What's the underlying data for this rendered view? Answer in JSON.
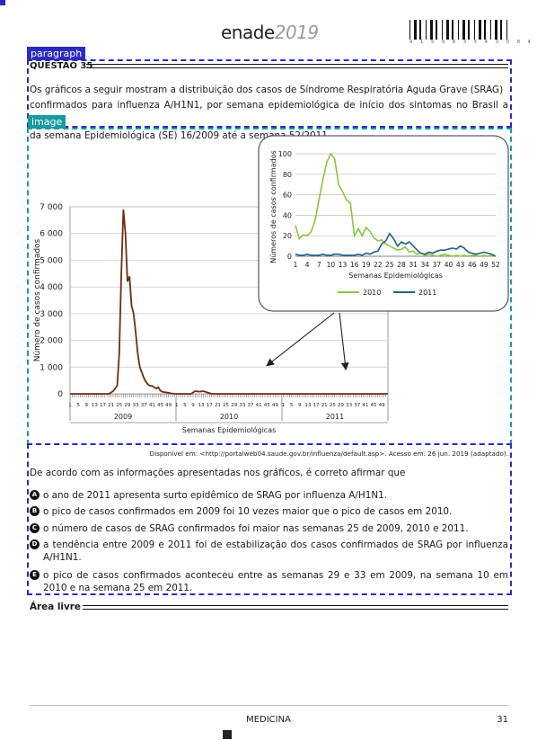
{
  "header": {
    "logo_main": "enade",
    "logo_year": "2019",
    "barcode_digits": "4 1 5 9 8 3 5 4 3 0 8 4"
  },
  "annotations": {
    "paragraph_tag": "paragraph",
    "image_tag": "image"
  },
  "question": {
    "title": "QUESTÃO 35",
    "intro_lines": [
      "Os gráficos a seguir mostram a distribuição dos casos de Síndrome Respiratória Aguda Grave (SRAG)",
      "confirmados para influenza A/H1N1, por semana epidemiológica de início dos sintomas no Brasil a partir",
      "da semana Epidemiológica (SE) 16/2009 até a semana 52/2011."
    ],
    "source": "Disponível em: <http://portalweb04.saude.gov.br/influenza/default.asp>. Acesso em: 26 jun. 2019 (adaptado).",
    "prompt": "De acordo com as informações apresentadas nos gráficos, é correto afirmar que",
    "options": [
      {
        "letter": "A",
        "text": "o ano de 2011 apresenta surto epidêmico de SRAG por influenza A/H1N1."
      },
      {
        "letter": "B",
        "text": "o pico de casos confirmados em 2009 foi 10 vezes maior que o pico de casos em 2010."
      },
      {
        "letter": "C",
        "text": "o número de casos de SRAG confirmados foi maior nas semanas 25 de 2009, 2010 e 2011."
      },
      {
        "letter": "D",
        "text": "a tendência entre 2009 e 2011 foi de estabilização dos casos confirmados de SRAG por influenza A/H1N1."
      },
      {
        "letter": "E",
        "text": "o pico de casos confirmados aconteceu entre as semanas 29 e 33 em 2009, na semana 10 em 2010 e na semana 25 em 2011."
      }
    ]
  },
  "area_livre": "Área livre",
  "footer": {
    "center": "MEDICINA",
    "page": "31"
  },
  "chart_data": [
    {
      "type": "line",
      "title": "",
      "xlabel": "Semanas Epidemiológicas",
      "ylabel": "Número de casos confirmados",
      "ylim": [
        0,
        7000
      ],
      "yticks": [
        "0",
        "1 000",
        "2 000",
        "3 000",
        "4 000",
        "5 000",
        "6 000",
        "7 000"
      ],
      "x_tick_labels": [
        "1",
        "5",
        "9",
        "13",
        "17",
        "21",
        "25",
        "29",
        "33",
        "37",
        "41",
        "45",
        "49",
        "1",
        "5",
        "9",
        "13",
        "17",
        "21",
        "25",
        "29",
        "33",
        "37",
        "41",
        "45",
        "49",
        "1",
        "5",
        "9",
        "13",
        "17",
        "21",
        "25",
        "29",
        "33",
        "37",
        "41",
        "45",
        "49"
      ],
      "year_labels": [
        "2009",
        "2010",
        "2011"
      ],
      "series": [
        {
          "color": "#6b2e12",
          "x": [
            1,
            20,
            22,
            24,
            25,
            26,
            27,
            28,
            29,
            30,
            31,
            32,
            33,
            34,
            35,
            36,
            37,
            38,
            39,
            40,
            41,
            42,
            43,
            44,
            45,
            46,
            47,
            48,
            49,
            50,
            52,
            55,
            60,
            62,
            64,
            66,
            70,
            80,
            100,
            120,
            140,
            156
          ],
          "values": [
            0,
            0,
            100,
            300,
            1500,
            4500,
            6900,
            6000,
            4200,
            4400,
            3300,
            3000,
            2300,
            1500,
            1000,
            800,
            600,
            450,
            350,
            300,
            300,
            250,
            200,
            250,
            120,
            80,
            60,
            50,
            40,
            20,
            0,
            0,
            0,
            100,
            80,
            100,
            0,
            0,
            0,
            0,
            0,
            0
          ]
        }
      ]
    },
    {
      "type": "line",
      "title": "",
      "xlabel": "Semanas Epidemiológicas",
      "ylabel": "Números de casos confirmados",
      "ylim": [
        0,
        100
      ],
      "yticks": [
        "0",
        "20",
        "40",
        "60",
        "80",
        "100"
      ],
      "x_tick_labels": [
        "1",
        "4",
        "7",
        "10",
        "13",
        "16",
        "19",
        "22",
        "25",
        "28",
        "31",
        "34",
        "37",
        "40",
        "43",
        "46",
        "49",
        "52"
      ],
      "legend": "bottom",
      "series": [
        {
          "name": "2010",
          "color": "#8cc63f",
          "x": [
            1,
            2,
            3,
            4,
            5,
            6,
            7,
            8,
            9,
            10,
            11,
            12,
            13,
            14,
            15,
            16,
            17,
            18,
            19,
            20,
            21,
            22,
            23,
            24,
            25,
            26,
            27,
            28,
            29,
            30,
            31,
            32,
            33,
            34,
            35,
            36,
            37,
            38,
            39,
            40,
            41,
            42,
            43,
            44,
            45,
            46,
            47,
            48,
            49,
            50,
            51,
            52
          ],
          "values": [
            30,
            17,
            21,
            20,
            24,
            35,
            55,
            75,
            92,
            100,
            95,
            70,
            63,
            55,
            52,
            20,
            27,
            20,
            28,
            24,
            18,
            15,
            16,
            12,
            10,
            8,
            6,
            7,
            9,
            4,
            5,
            2,
            3,
            1,
            2,
            1,
            0,
            1,
            2,
            1,
            0,
            1,
            0,
            1,
            0,
            1,
            1,
            0,
            1,
            0,
            1,
            0
          ]
        },
        {
          "name": "2011",
          "color": "#1f5f8b",
          "x": [
            1,
            2,
            3,
            4,
            5,
            6,
            7,
            8,
            9,
            10,
            11,
            12,
            13,
            14,
            15,
            16,
            17,
            18,
            19,
            20,
            21,
            22,
            23,
            24,
            25,
            26,
            27,
            28,
            29,
            30,
            31,
            32,
            33,
            34,
            35,
            36,
            37,
            38,
            39,
            40,
            41,
            42,
            43,
            44,
            45,
            46,
            47,
            48,
            49,
            50,
            51,
            52
          ],
          "values": [
            2,
            1,
            1,
            2,
            1,
            1,
            1,
            2,
            1,
            1,
            2,
            2,
            1,
            1,
            1,
            1,
            2,
            1,
            3,
            2,
            4,
            5,
            12,
            15,
            22,
            17,
            10,
            14,
            12,
            14,
            10,
            6,
            3,
            2,
            4,
            3,
            5,
            6,
            6,
            7,
            8,
            7,
            10,
            8,
            4,
            3,
            2,
            3,
            4,
            3,
            2,
            0
          ]
        }
      ]
    }
  ]
}
